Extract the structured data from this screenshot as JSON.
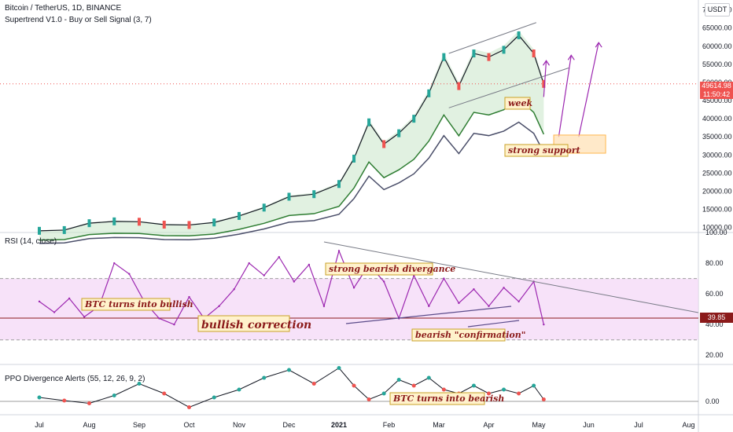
{
  "header": {
    "title": "Bitcoin / TetherUS, 1D, BINANCE",
    "indicator": "Supertrend V1.0 - Buy or Sell Signal (3, 7)",
    "currency": "USDT"
  },
  "price_tag": {
    "price": "49614.98",
    "countdown": "11:50:42"
  },
  "rsi_panel": {
    "title": "RSI (14, close)",
    "value_tag": "39.85"
  },
  "ppo_panel": {
    "title": "PPO Divergence Alerts (55, 12, 26, 9, 2)"
  },
  "annotations": {
    "week": "week",
    "strong_support": "strong support",
    "strong_bearish": "strong bearish divergance",
    "turns_bullish": "BTC turns into bullish",
    "bullish_correction": "bullish correction",
    "bearish_confirmation": "bearish \"confirmation\"",
    "turns_bearish": "BTC turns into bearish"
  },
  "colors": {
    "up": "#26a69a",
    "down": "#ef5350",
    "rsi": "#9c27b0",
    "rsi_band": "#f3d6f7",
    "supertrend": "#2e7d32",
    "cloud": "#c8e6c9",
    "annotation": "#8b1a1a",
    "note_bg": "#fff2cc"
  },
  "chart_data": {
    "type": "line",
    "x_ticks": [
      "Jul",
      "Aug",
      "Sep",
      "Oct",
      "Nov",
      "Dec",
      "2021",
      "Feb",
      "Mar",
      "Apr",
      "May",
      "Jun",
      "Jul",
      "Aug"
    ],
    "price": {
      "yticks": [
        10000,
        15000,
        20000,
        25000,
        30000,
        35000,
        40000,
        45000,
        50000,
        55000,
        60000,
        65000,
        70000
      ],
      "ylim": [
        9500,
        71000
      ],
      "x": [
        0,
        0.5,
        1,
        1.5,
        2,
        2.5,
        3,
        3.5,
        4,
        4.5,
        5,
        5.5,
        6,
        6.3,
        6.6,
        6.9,
        7.2,
        7.5,
        7.8,
        8.1,
        8.4,
        8.7,
        9.0,
        9.3,
        9.6,
        9.9,
        10.1
      ],
      "close": [
        9100,
        9300,
        11200,
        11700,
        11600,
        10800,
        10700,
        11400,
        13200,
        15500,
        18500,
        19200,
        22000,
        29000,
        39000,
        33000,
        36000,
        40000,
        47000,
        57000,
        49000,
        58000,
        57000,
        59000,
        63000,
        58000,
        49600
      ]
    },
    "rsi": {
      "yticks": [
        20,
        40,
        60,
        80,
        100
      ],
      "ylim": [
        15,
        100
      ],
      "band": [
        30,
        70
      ],
      "x": [
        0,
        0.3,
        0.6,
        0.9,
        1.2,
        1.5,
        1.8,
        2.1,
        2.4,
        2.7,
        3.0,
        3.3,
        3.6,
        3.9,
        4.2,
        4.5,
        4.8,
        5.1,
        5.4,
        5.7,
        6.0,
        6.3,
        6.6,
        6.9,
        7.2,
        7.5,
        7.8,
        8.1,
        8.4,
        8.7,
        9.0,
        9.3,
        9.6,
        9.9,
        10.1
      ],
      "values": [
        55,
        48,
        57,
        45,
        52,
        80,
        73,
        55,
        44,
        40,
        58,
        44,
        52,
        63,
        80,
        72,
        84,
        68,
        79,
        52,
        88,
        64,
        79,
        68,
        44,
        72,
        52,
        70,
        54,
        63,
        52,
        64,
        55,
        68,
        40
      ]
    },
    "ppo": {
      "yticks": [
        0
      ],
      "ylim": [
        -3,
        9
      ],
      "x": [
        0,
        0.5,
        1,
        1.5,
        2,
        2.5,
        3,
        3.5,
        4,
        4.5,
        5,
        5.5,
        6,
        6.3,
        6.6,
        6.9,
        7.2,
        7.5,
        7.8,
        8.1,
        8.4,
        8.7,
        9.0,
        9.3,
        9.6,
        9.9,
        10.1
      ],
      "values": [
        1,
        0.2,
        -0.5,
        1.5,
        4.5,
        2,
        -1.5,
        1,
        3,
        6,
        8,
        4.5,
        8.5,
        4,
        0.5,
        2,
        5.5,
        4,
        6,
        3,
        2,
        4,
        2,
        3,
        2,
        4,
        0.5
      ]
    }
  }
}
